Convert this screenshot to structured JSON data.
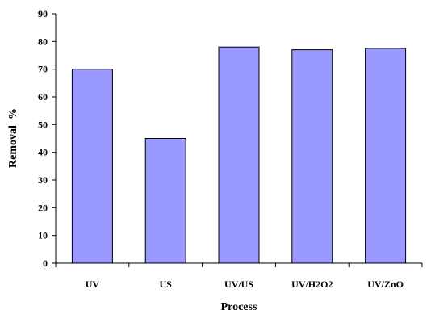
{
  "chart_data": {
    "type": "bar",
    "categories": [
      "UV",
      "US",
      "UV/US",
      "UV/H2O2",
      "UV/ZnO"
    ],
    "values": [
      70,
      45,
      78,
      77,
      77.5
    ],
    "xlabel": "Process",
    "ylabel": "Removal  %",
    "ylim": [
      0,
      90
    ],
    "yticks": [
      0,
      10,
      20,
      30,
      40,
      50,
      60,
      70,
      80,
      90
    ],
    "grid": false,
    "legend": "none",
    "colors": {
      "bar_fill": "#9999ff",
      "bar_stroke": "#000000",
      "axis": "#000000"
    }
  }
}
